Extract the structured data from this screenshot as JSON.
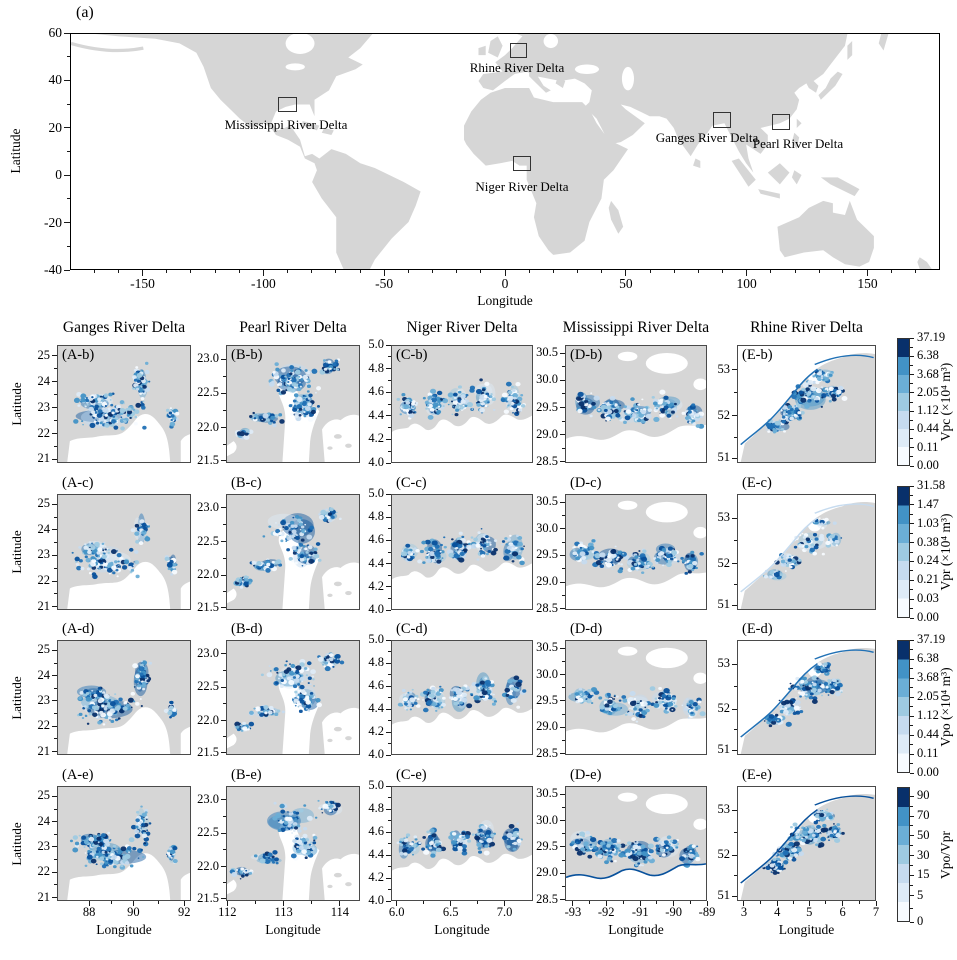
{
  "figure": {
    "panel_a_label": "(a)",
    "world_map": {
      "xlabel": "Longitude",
      "ylabel": "Latitude",
      "x_ticks": [
        "-150",
        "-100",
        "-50",
        "0",
        "50",
        "100",
        "150"
      ],
      "y_ticks": [
        "60",
        "40",
        "20",
        "0",
        "-20",
        "-40"
      ],
      "markers": [
        {
          "id": "mississippi",
          "label": "Mississippi River Delta"
        },
        {
          "id": "rhine",
          "label": "Rhine River Delta"
        },
        {
          "id": "niger",
          "label": "Niger River Delta"
        },
        {
          "id": "ganges",
          "label": "Ganges River Delta"
        },
        {
          "id": "pearl",
          "label": "Pearl River Delta"
        }
      ]
    },
    "delta_grid": {
      "xlabel": "Longitude",
      "ylabel": "Latitude",
      "column_titles": [
        "Ganges River Delta",
        "Pearl River Delta",
        "Niger River Delta",
        "Mississippi River Delta",
        "Rhine River Delta"
      ],
      "columns": [
        {
          "id": "A",
          "y_ticks": [
            "25",
            "24",
            "23",
            "22",
            "21"
          ],
          "x_ticks": [
            "88",
            "90",
            "92"
          ]
        },
        {
          "id": "B",
          "y_ticks": [
            "23.0",
            "22.5",
            "22.0",
            "21.5"
          ],
          "x_ticks": [
            "112",
            "113",
            "114"
          ]
        },
        {
          "id": "C",
          "y_ticks": [
            "5.0",
            "4.8",
            "4.6",
            "4.4",
            "4.2",
            "4.0"
          ],
          "x_ticks": [
            "6.0",
            "6.5",
            "7.0"
          ]
        },
        {
          "id": "D",
          "y_ticks": [
            "30.5",
            "30.0",
            "29.5",
            "29.0",
            "28.5"
          ],
          "x_ticks": [
            "-93",
            "-92",
            "-91",
            "-90",
            "-89"
          ]
        },
        {
          "id": "E",
          "y_ticks": [
            "53",
            "52",
            "51"
          ],
          "x_ticks": [
            "3",
            "4",
            "5",
            "6",
            "7"
          ]
        }
      ],
      "rows": [
        {
          "suffix": "b",
          "panel_labels": [
            "(A-b)",
            "(B-b)",
            "(C-b)",
            "(D-b)",
            "(E-b)"
          ],
          "colorbar": {
            "label": "Vpc (×10⁴ m³)",
            "ticks": [
              "37.19",
              "6.38",
              "3.68",
              "2.05",
              "1.12",
              "0.44",
              "0.11",
              "0.00"
            ]
          }
        },
        {
          "suffix": "c",
          "panel_labels": [
            "(A-c)",
            "(B-c)",
            "(C-c)",
            "(D-c)",
            "(E-c)"
          ],
          "colorbar": {
            "label": "Vpr (×10⁴ m³)",
            "ticks": [
              "31.58",
              "1.47",
              "1.03",
              "0.38",
              "0.24",
              "0.21",
              "0.03",
              "0.00"
            ]
          }
        },
        {
          "suffix": "d",
          "panel_labels": [
            "(A-d)",
            "(B-d)",
            "(C-d)",
            "(D-d)",
            "(E-d)"
          ],
          "colorbar": {
            "label": "Vpo (×10⁴ m³)",
            "ticks": [
              "37.19",
              "6.38",
              "3.68",
              "2.05",
              "1.12",
              "0.44",
              "0.11",
              "0.00"
            ]
          }
        },
        {
          "suffix": "e",
          "panel_labels": [
            "(A-e)",
            "(B-e)",
            "(C-e)",
            "(D-e)",
            "(E-e)"
          ],
          "colorbar": {
            "label": "Vpo/Vpr",
            "ticks": [
              "90",
              "70",
              "50",
              "30",
              "15",
              "5",
              "0"
            ]
          }
        }
      ]
    },
    "colors": {
      "land": "#d6d6d6",
      "sea": "#ffffff",
      "blues": [
        "#f7fbff",
        "#deebf7",
        "#c6dbef",
        "#9ecae1",
        "#6baed6",
        "#4292c6",
        "#2171b5",
        "#08519c",
        "#08306b"
      ]
    }
  },
  "chart_data": {
    "type": "heatmap",
    "title": "",
    "colormap": "Blues",
    "world_map": {
      "xlabel": "Longitude",
      "ylabel": "Latitude",
      "xlim": [
        -180,
        180
      ],
      "ylim": [
        -40,
        60
      ],
      "x_ticks": [
        -150,
        -100,
        -50,
        0,
        50,
        100,
        150
      ],
      "y_ticks": [
        60,
        40,
        20,
        0,
        -20,
        -40
      ],
      "marked_regions": [
        "Mississippi River Delta",
        "Rhine River Delta",
        "Niger River Delta",
        "Ganges River Delta",
        "Pearl River Delta"
      ]
    },
    "columns": [
      {
        "title": "Ganges River Delta",
        "panel_prefix": "A",
        "lat_ticks": [
          25,
          24,
          23,
          22,
          21
        ],
        "lon_ticks": [
          88,
          90,
          92
        ]
      },
      {
        "title": "Pearl River Delta",
        "panel_prefix": "B",
        "lat_ticks": [
          23.0,
          22.5,
          22.0,
          21.5
        ],
        "lon_ticks": [
          112,
          113,
          114
        ]
      },
      {
        "title": "Niger River Delta",
        "panel_prefix": "C",
        "lat_ticks": [
          5.0,
          4.8,
          4.6,
          4.4,
          4.2,
          4.0
        ],
        "lon_ticks": [
          6.0,
          6.5,
          7.0
        ]
      },
      {
        "title": "Mississippi River Delta",
        "panel_prefix": "D",
        "lat_ticks": [
          30.5,
          30.0,
          29.5,
          29.0,
          28.5
        ],
        "lon_ticks": [
          -93,
          -92,
          -91,
          -90,
          -89
        ]
      },
      {
        "title": "Rhine River Delta",
        "panel_prefix": "E",
        "lat_ticks": [
          53,
          52,
          51
        ],
        "lon_ticks": [
          3,
          4,
          5,
          6,
          7
        ]
      }
    ],
    "rows": [
      {
        "row_suffix": "b",
        "variable": "Vpc",
        "colorbar_label": "Vpc (×10⁴ m³)",
        "colorbar_ticks": [
          37.19,
          6.38,
          3.68,
          2.05,
          1.12,
          0.44,
          0.11,
          0.0
        ]
      },
      {
        "row_suffix": "c",
        "variable": "Vpr",
        "colorbar_label": "Vpr (×10⁴ m³)",
        "colorbar_ticks": [
          31.58,
          1.47,
          1.03,
          0.38,
          0.24,
          0.21,
          0.03,
          0.0
        ]
      },
      {
        "row_suffix": "d",
        "variable": "Vpo",
        "colorbar_label": "Vpo (×10⁴ m³)",
        "colorbar_ticks": [
          37.19,
          6.38,
          3.68,
          2.05,
          1.12,
          0.44,
          0.11,
          0.0
        ]
      },
      {
        "row_suffix": "e",
        "variable": "Vpo/Vpr",
        "colorbar_label": "Vpo/Vpr",
        "colorbar_ticks": [
          90,
          70,
          50,
          30,
          15,
          5,
          0
        ]
      }
    ]
  }
}
